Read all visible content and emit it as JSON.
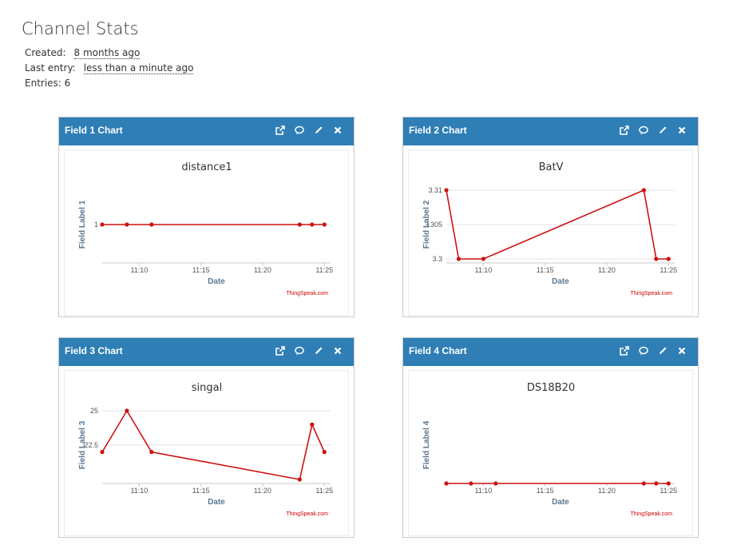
{
  "header": {
    "title": "Channel Stats",
    "created_label": "Created:",
    "created_value": "8 months ago",
    "last_entry_label": "Last entry:",
    "last_entry_value": "less than a minute ago",
    "entries_text": "Entries: 6"
  },
  "panel_tools": [
    "external-link-icon",
    "comment-icon",
    "pencil-icon",
    "close-icon"
  ],
  "colors": {
    "header": "#2f7eb6",
    "line": "#cc1111",
    "credit": "#cc0000",
    "axis_title": "#5b7791"
  },
  "chart_data": [
    {
      "panel_title": "Field 1 Chart",
      "type": "line",
      "title": "distance1",
      "xlabel": "Date",
      "ylabel": "Field Label 1",
      "credit": "ThingSpeak.com",
      "x": [
        "11:07",
        "11:09",
        "11:11",
        "11:23",
        "11:24",
        "11:25"
      ],
      "x_ticks": [
        "11:10",
        "11:15",
        "11:20",
        "11:25"
      ],
      "values": [
        1,
        1,
        1,
        1,
        1,
        1
      ],
      "y_ticks": [
        {
          "v": 1,
          "label": "1"
        }
      ],
      "ylim": [
        0.98,
        1.02
      ],
      "grid": true
    },
    {
      "panel_title": "Field 2 Chart",
      "type": "line",
      "title": "BatV",
      "xlabel": "Date",
      "ylabel": "Field Label 2",
      "credit": "ThingSpeak.com",
      "x": [
        "11:07",
        "11:08",
        "11:10",
        "11:23",
        "11:24",
        "11:25"
      ],
      "x_ticks": [
        "11:10",
        "11:15",
        "11:20",
        "11:25"
      ],
      "values": [
        3.31,
        3.3,
        3.3,
        3.31,
        3.3,
        3.3
      ],
      "y_ticks": [
        {
          "v": 3.31,
          "label": "3.31"
        },
        {
          "v": 3.305,
          "label": "3.305"
        },
        {
          "v": 3.3,
          "label": "3.3"
        }
      ],
      "ylim": [
        3.3,
        3.31
      ],
      "grid": true
    },
    {
      "panel_title": "Field 3 Chart",
      "type": "line",
      "title": "singal",
      "xlabel": "Date",
      "ylabel": "Field Label 3",
      "credit": "ThingSpeak.com",
      "x": [
        "11:07",
        "11:09",
        "11:11",
        "11:23",
        "11:24",
        "11:25"
      ],
      "x_ticks": [
        "11:10",
        "11:15",
        "11:20",
        "11:25"
      ],
      "values": [
        22,
        25,
        22,
        20,
        24,
        22
      ],
      "y_ticks": [
        {
          "v": 25,
          "label": "25"
        },
        {
          "v": 22.5,
          "label": "22.5"
        }
      ],
      "ylim": [
        20,
        25
      ],
      "grid": true
    },
    {
      "panel_title": "Field 4 Chart",
      "type": "line",
      "title": "DS18B20",
      "xlabel": "Date",
      "ylabel": "Field Label 4",
      "credit": "ThingSpeak.com",
      "x": [
        "11:07",
        "11:09",
        "11:11",
        "11:23",
        "11:24",
        "11:25"
      ],
      "x_ticks": [
        "11:10",
        "11:15",
        "11:20",
        "11:25"
      ],
      "values": [
        0,
        0,
        0,
        0,
        0,
        0
      ],
      "y_ticks": [],
      "ylim": [
        0,
        1
      ],
      "grid": false
    }
  ]
}
